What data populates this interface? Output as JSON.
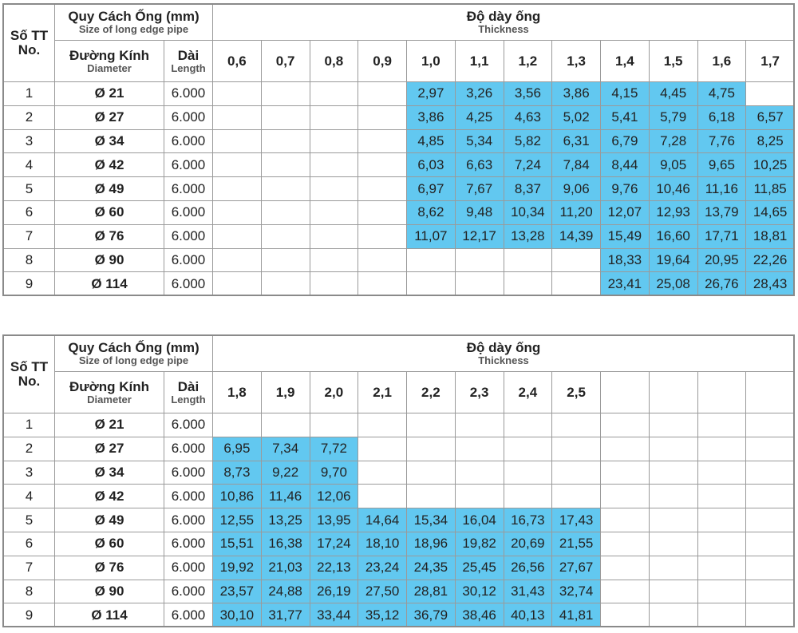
{
  "tables": [
    {
      "header": {
        "no": "Số TT",
        "no_en": "No.",
        "spec": "Quy Cách Ống (mm)",
        "spec_en": "Size of long edge pipe",
        "thickness": "Độ dày ống",
        "thickness_en": "Thickness",
        "diameter": "Đường Kính",
        "diameter_en": "Diameter",
        "length": "Dài",
        "length_en": "Length",
        "columns": [
          "0,6",
          "0,7",
          "0,8",
          "0,9",
          "1,0",
          "1,1",
          "1,2",
          "1,3",
          "1,4",
          "1,5",
          "1,6",
          "1,7"
        ]
      },
      "rows": [
        {
          "no": 1,
          "diameter": "Ø 21",
          "length": "6.000",
          "cells": [
            null,
            null,
            null,
            null,
            "2,97",
            "3,26",
            "3,56",
            "3,86",
            "4,15",
            "4,45",
            "4,75",
            null
          ]
        },
        {
          "no": 2,
          "diameter": "Ø 27",
          "length": "6.000",
          "cells": [
            null,
            null,
            null,
            null,
            "3,86",
            "4,25",
            "4,63",
            "5,02",
            "5,41",
            "5,79",
            "6,18",
            "6,57"
          ]
        },
        {
          "no": 3,
          "diameter": "Ø 34",
          "length": "6.000",
          "cells": [
            null,
            null,
            null,
            null,
            "4,85",
            "5,34",
            "5,82",
            "6,31",
            "6,79",
            "7,28",
            "7,76",
            "8,25"
          ]
        },
        {
          "no": 4,
          "diameter": "Ø 42",
          "length": "6.000",
          "cells": [
            null,
            null,
            null,
            null,
            "6,03",
            "6,63",
            "7,24",
            "7,84",
            "8,44",
            "9,05",
            "9,65",
            "10,25"
          ]
        },
        {
          "no": 5,
          "diameter": "Ø 49",
          "length": "6.000",
          "cells": [
            null,
            null,
            null,
            null,
            "6,97",
            "7,67",
            "8,37",
            "9,06",
            "9,76",
            "10,46",
            "11,16",
            "11,85"
          ]
        },
        {
          "no": 6,
          "diameter": "Ø 60",
          "length": "6.000",
          "cells": [
            null,
            null,
            null,
            null,
            "8,62",
            "9,48",
            "10,34",
            "11,20",
            "12,07",
            "12,93",
            "13,79",
            "14,65"
          ]
        },
        {
          "no": 7,
          "diameter": "Ø 76",
          "length": "6.000",
          "cells": [
            null,
            null,
            null,
            null,
            "11,07",
            "12,17",
            "13,28",
            "14,39",
            "15,49",
            "16,60",
            "17,71",
            "18,81"
          ]
        },
        {
          "no": 8,
          "diameter": "Ø 90",
          "length": "6.000",
          "cells": [
            null,
            null,
            null,
            null,
            null,
            null,
            null,
            null,
            "18,33",
            "19,64",
            "20,95",
            "22,26"
          ]
        },
        {
          "no": 9,
          "diameter": "Ø 114",
          "length": "6.000",
          "cells": [
            null,
            null,
            null,
            null,
            null,
            null,
            null,
            null,
            "23,41",
            "25,08",
            "26,76",
            "28,43"
          ]
        }
      ]
    },
    {
      "header": {
        "no": "Số TT",
        "no_en": "No.",
        "spec": "Quy Cách Ống (mm)",
        "spec_en": "Size of long edge pipe",
        "thickness": "Độ dày ống",
        "thickness_en": "Thickness",
        "diameter": "Đường Kính",
        "diameter_en": "Diameter",
        "length": "Dài",
        "length_en": "Length",
        "columns": [
          "1,8",
          "1,9",
          "2,0",
          "2,1",
          "2,2",
          "2,3",
          "2,4",
          "2,5",
          null,
          null,
          null,
          null
        ]
      },
      "rows": [
        {
          "no": 1,
          "diameter": "Ø 21",
          "length": "6.000",
          "cells": [
            null,
            null,
            null,
            null,
            null,
            null,
            null,
            null,
            null,
            null,
            null,
            null
          ]
        },
        {
          "no": 2,
          "diameter": "Ø 27",
          "length": "6.000",
          "cells": [
            "6,95",
            "7,34",
            "7,72",
            null,
            null,
            null,
            null,
            null,
            null,
            null,
            null,
            null
          ]
        },
        {
          "no": 3,
          "diameter": "Ø 34",
          "length": "6.000",
          "cells": [
            "8,73",
            "9,22",
            "9,70",
            null,
            null,
            null,
            null,
            null,
            null,
            null,
            null,
            null
          ]
        },
        {
          "no": 4,
          "diameter": "Ø 42",
          "length": "6.000",
          "cells": [
            "10,86",
            "11,46",
            "12,06",
            null,
            null,
            null,
            null,
            null,
            null,
            null,
            null,
            null
          ]
        },
        {
          "no": 5,
          "diameter": "Ø 49",
          "length": "6.000",
          "cells": [
            "12,55",
            "13,25",
            "13,95",
            "14,64",
            "15,34",
            "16,04",
            "16,73",
            "17,43",
            null,
            null,
            null,
            null
          ]
        },
        {
          "no": 6,
          "diameter": "Ø 60",
          "length": "6.000",
          "cells": [
            "15,51",
            "16,38",
            "17,24",
            "18,10",
            "18,96",
            "19,82",
            "20,69",
            "21,55",
            null,
            null,
            null,
            null
          ]
        },
        {
          "no": 7,
          "diameter": "Ø 76",
          "length": "6.000",
          "cells": [
            "19,92",
            "21,03",
            "22,13",
            "23,24",
            "24,35",
            "25,45",
            "26,56",
            "27,67",
            null,
            null,
            null,
            null
          ]
        },
        {
          "no": 8,
          "diameter": "Ø 90",
          "length": "6.000",
          "cells": [
            "23,57",
            "24,88",
            "26,19",
            "27,50",
            "28,81",
            "30,12",
            "31,43",
            "32,74",
            null,
            null,
            null,
            null
          ]
        },
        {
          "no": 9,
          "diameter": "Ø 114",
          "length": "6.000",
          "cells": [
            "30,10",
            "31,77",
            "33,44",
            "35,12",
            "36,79",
            "38,46",
            "40,13",
            "41,81",
            null,
            null,
            null,
            null
          ]
        }
      ]
    }
  ]
}
